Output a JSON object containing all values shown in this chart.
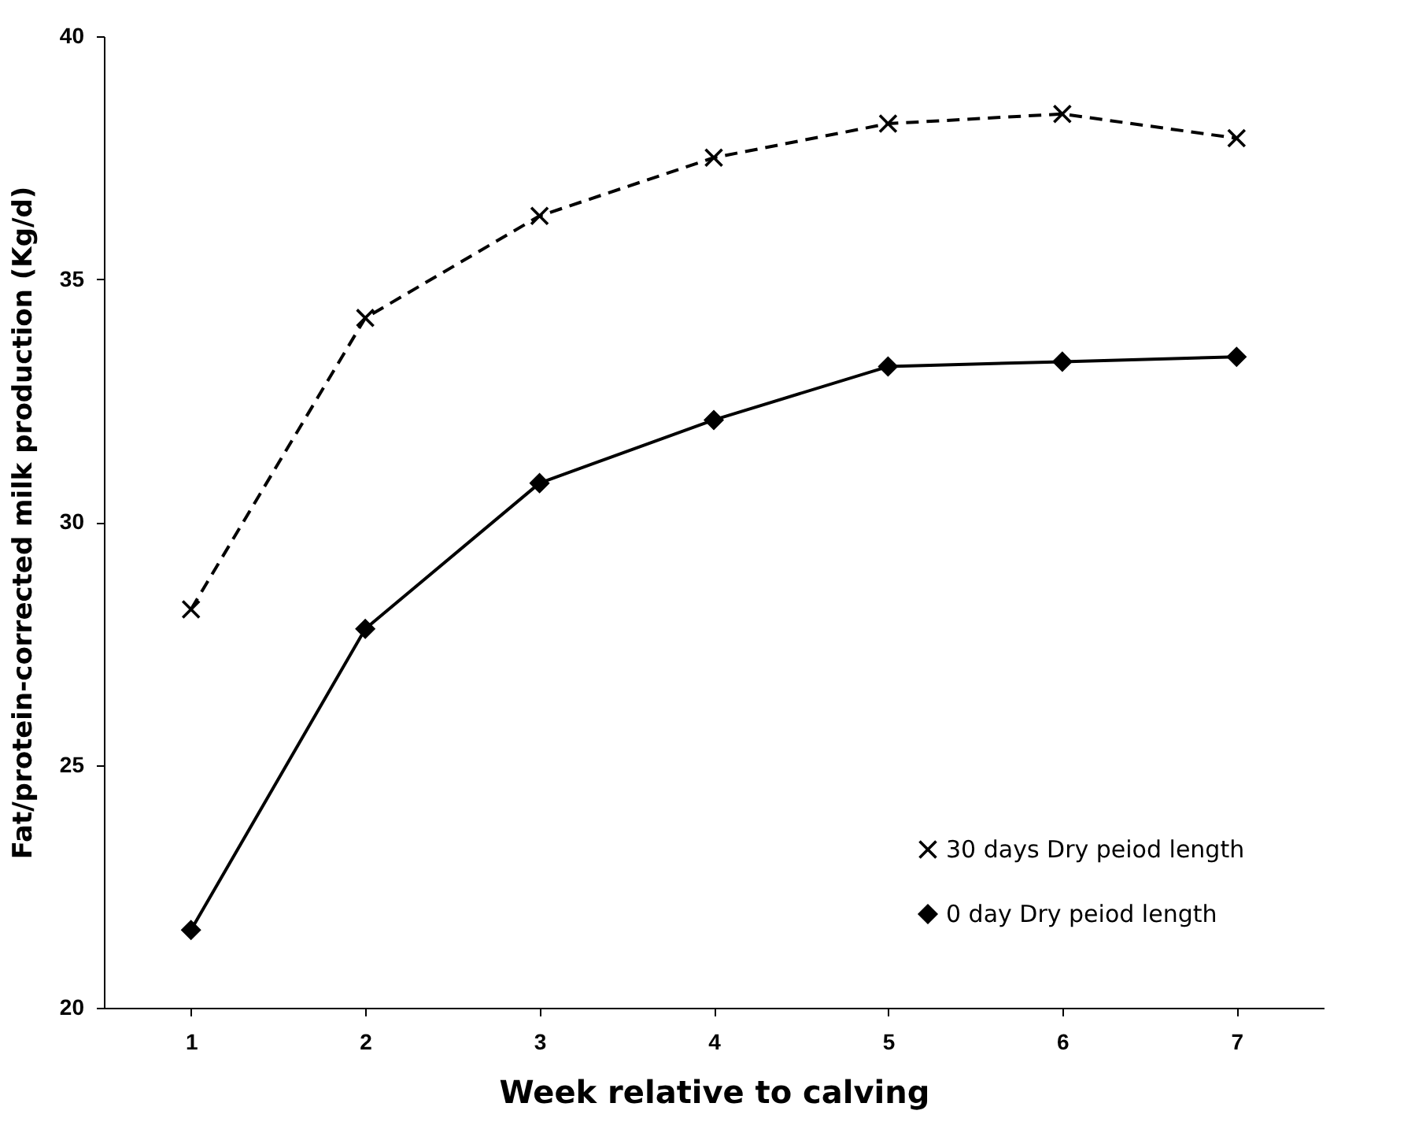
{
  "chart_data": {
    "type": "line",
    "xlabel": "Week relative to calving",
    "ylabel": "Fat/protein-corrected milk production (Kg/d)",
    "categories": [
      "1",
      "2",
      "3",
      "4",
      "5",
      "6",
      "7"
    ],
    "series": [
      {
        "name": "30 days Dry peiod length",
        "color": "#000000",
        "marker": "cross",
        "line_style": "dashed",
        "values": [
          28.2,
          34.2,
          36.3,
          37.5,
          38.2,
          38.4,
          37.9
        ]
      },
      {
        "name": "0 day Dry peiod length",
        "color": "#000000",
        "marker": "diamond",
        "line_style": "solid",
        "values": [
          21.6,
          27.8,
          30.8,
          32.1,
          33.2,
          33.3,
          33.4
        ]
      }
    ],
    "ylim": [
      20,
      40
    ],
    "yticks": [
      20,
      25,
      30,
      35,
      40
    ],
    "grid": false,
    "legend": "bottom right"
  }
}
